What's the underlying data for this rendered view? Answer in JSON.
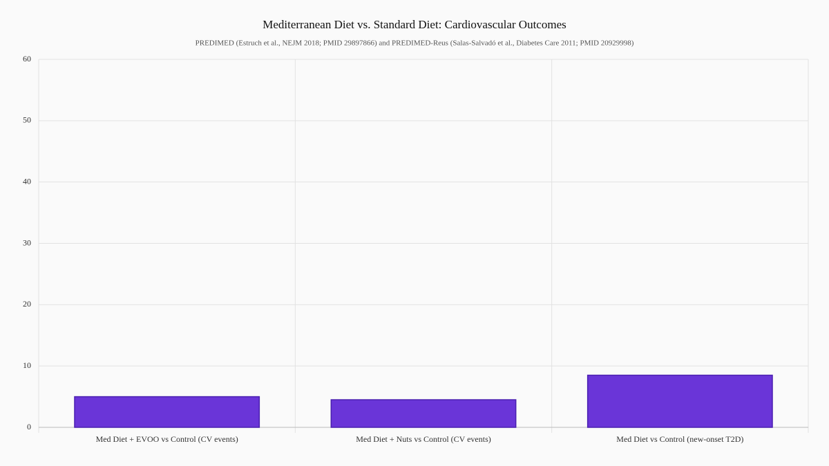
{
  "chart_data": {
    "type": "bar",
    "title": "Mediterranean Diet vs. Standard Diet: Cardiovascular Outcomes",
    "subtitle": "PREDIMED (Estruch et al., NEJM 2018; PMID 29897866) and PREDIMED-Reus (Salas-Salvadó et al., Diabetes Care 2011; PMID 20929998)",
    "categories": [
      "Med Diet + EVOO vs Control (CV events)",
      "Med Diet + Nuts vs Control (CV events)",
      "Med Diet vs Control (new-onset T2D)"
    ],
    "values": [
      5.0,
      4.5,
      8.5
    ],
    "color": "#6a35d8",
    "ylim": [
      0,
      60
    ],
    "yticks": [
      0,
      10,
      20,
      30,
      40,
      50,
      60
    ],
    "grid": true
  }
}
